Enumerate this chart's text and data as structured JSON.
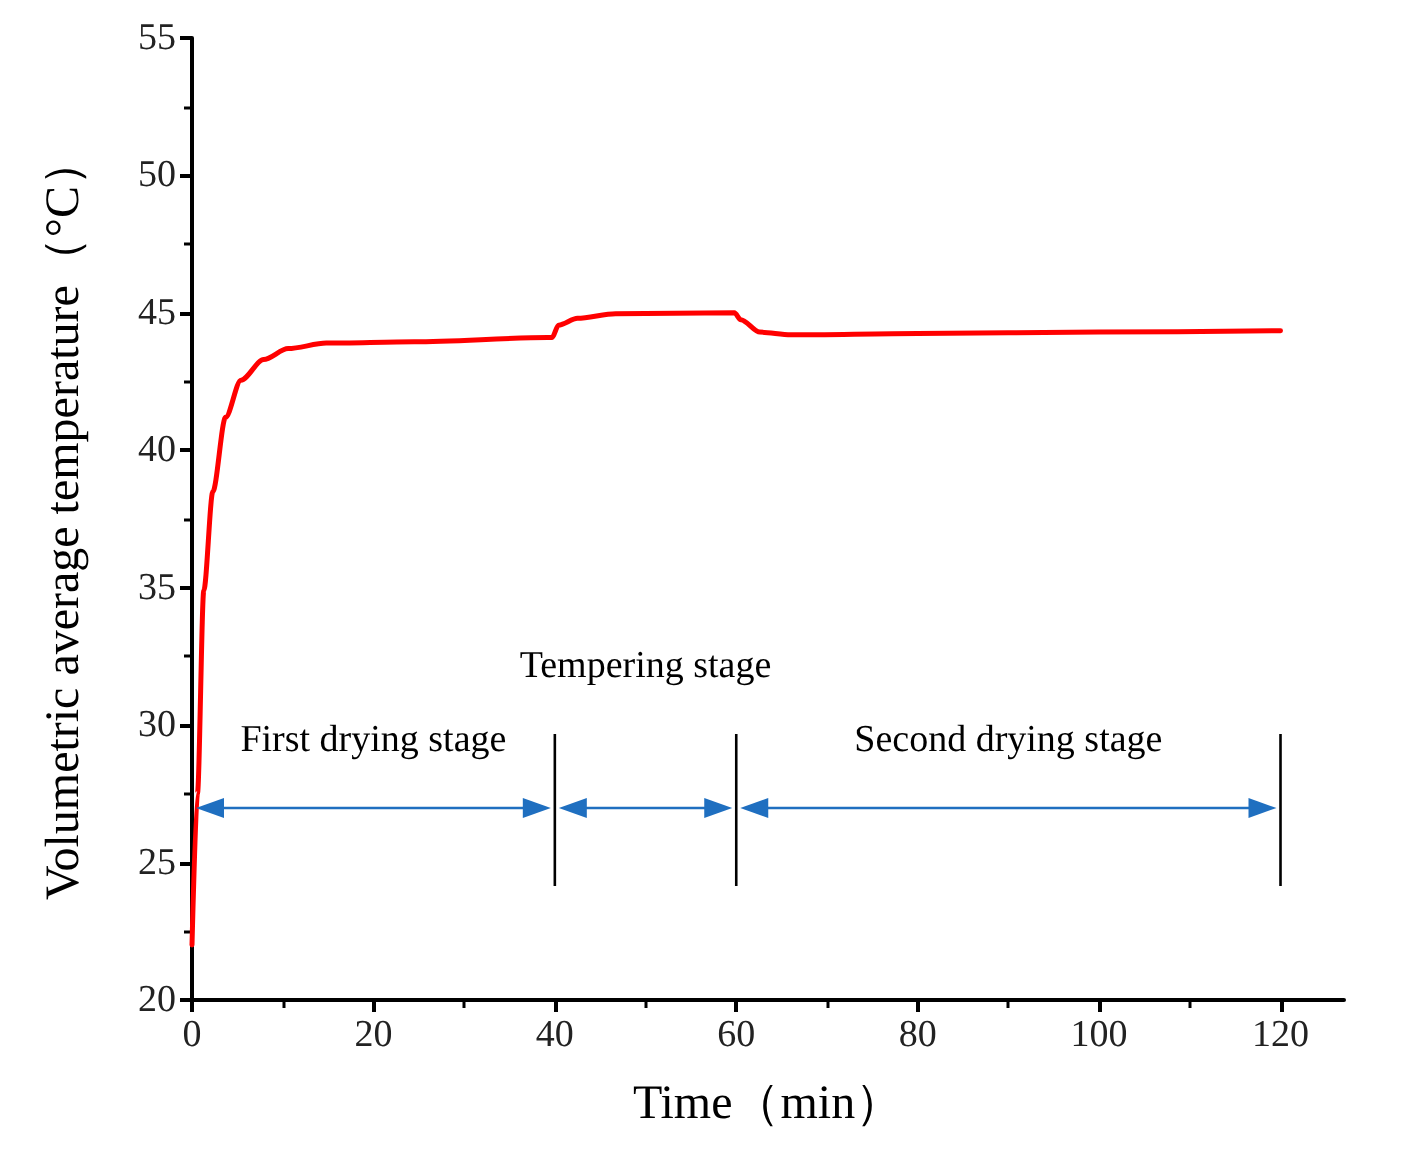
{
  "chart_data": {
    "type": "line",
    "xlabel": "Time（min）",
    "ylabel": "Volumetric average temperature（°C）",
    "x": [
      0,
      0.6,
      1.3,
      2.3,
      3.7,
      5.4,
      7.9,
      10.6,
      14.8,
      24.5,
      39.2,
      39.7,
      40.4,
      42.5,
      46.7,
      59.8,
      60.5,
      62.6,
      66,
      80,
      100,
      120
    ],
    "series": [
      {
        "color": "#ff0000",
        "values": [
          22,
          27.5,
          34.9,
          38.5,
          41.2,
          42.55,
          43.3,
          43.7,
          43.9,
          43.95,
          44.1,
          44.1,
          44.55,
          44.8,
          44.97,
          45.0,
          44.75,
          44.3,
          44.2,
          44.25,
          44.3,
          44.35
        ]
      }
    ],
    "xlim": [
      0,
      127
    ],
    "xticks": [
      0,
      20,
      40,
      60,
      80,
      100,
      120
    ],
    "ylim": [
      20,
      55
    ],
    "yticks": [
      20,
      25,
      30,
      35,
      40,
      45,
      50,
      55
    ],
    "grid": false,
    "marker": "none",
    "line_style": "solid",
    "ref_lines": [
      {
        "axis": "x",
        "value": 40,
        "color": "#000000"
      },
      {
        "axis": "x",
        "value": 60,
        "color": "#000000"
      },
      {
        "axis": "x",
        "value": 120,
        "color": "#000000"
      }
    ],
    "annotations": [
      "First drying stage",
      "Tempering stage",
      "Second drying stage"
    ]
  }
}
